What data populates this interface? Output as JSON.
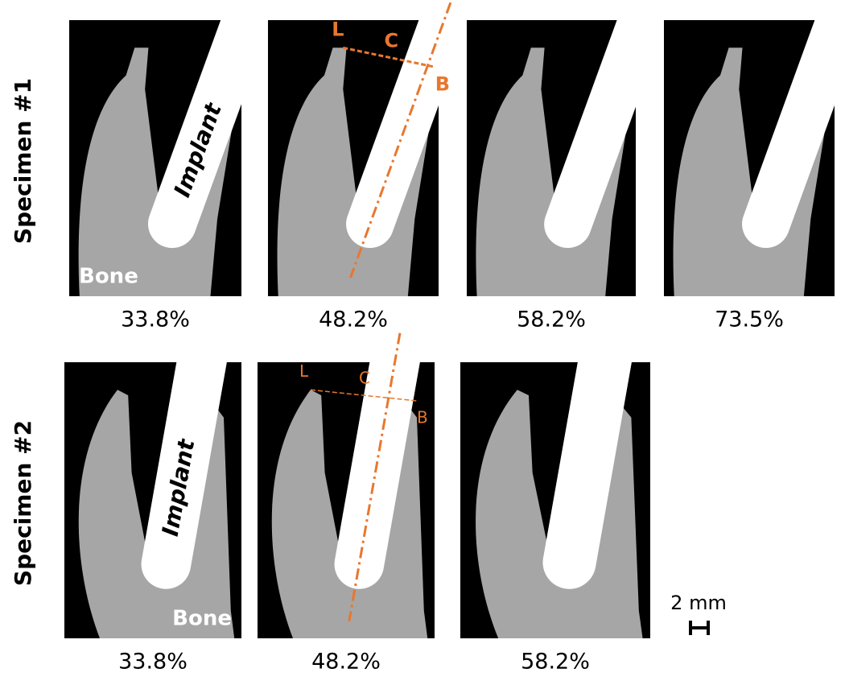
{
  "rows": [
    {
      "label": "Specimen #1",
      "panels": [
        {
          "caption": "33.8%",
          "implant_label": "Implant",
          "bone_label": "Bone"
        },
        {
          "caption": "48.2%",
          "markers": [
            "L",
            "C",
            "B"
          ]
        },
        {
          "caption": "58.2%"
        },
        {
          "caption": "73.5%"
        }
      ]
    },
    {
      "label": "Specimen #2",
      "panels": [
        {
          "caption": "33.8%",
          "implant_label": "Implant",
          "bone_label": "Bone"
        },
        {
          "caption": "48.2%",
          "markers": [
            "L",
            "C",
            "B"
          ]
        },
        {
          "caption": "58.2%"
        }
      ]
    }
  ],
  "scale_bar": "2 mm"
}
